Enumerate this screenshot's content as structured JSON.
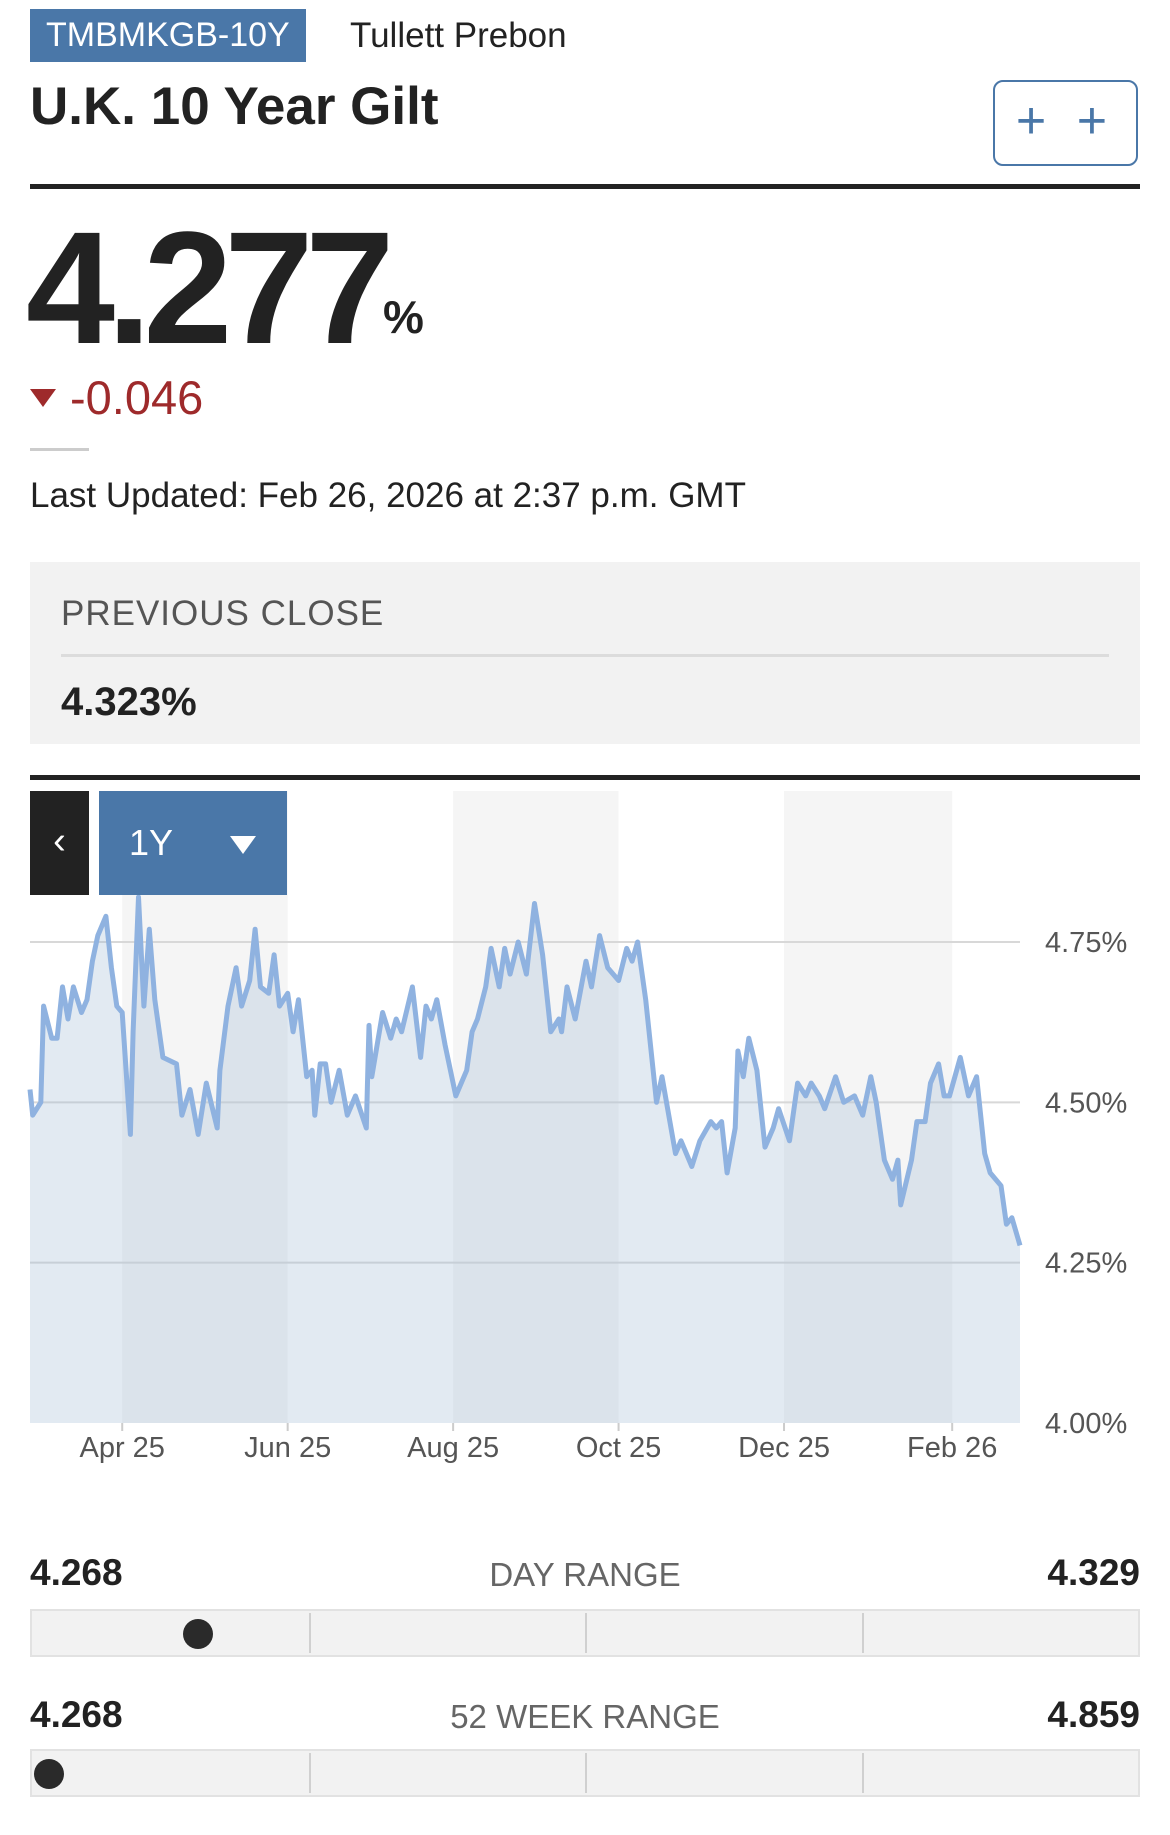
{
  "header": {
    "ticker": "TMBMKGB-10Y",
    "source": "Tullett Prebon",
    "title": "U.K. 10 Year Gilt",
    "add_button_label": "+ +"
  },
  "quote": {
    "price": "4.277",
    "unit": "%",
    "change": "-0.046",
    "direction": "down",
    "last_updated": "Last Updated: Feb 26, 2026 at 2:37 p.m. GMT"
  },
  "previous_close": {
    "label": "PREVIOUS CLOSE",
    "value": "4.323%"
  },
  "chart_controls": {
    "back_label": "‹",
    "range_label": "1Y"
  },
  "colors": {
    "accent": "#4a77a8",
    "negative": "#9e2a2b",
    "line": "#8fb2e0"
  },
  "chart_data": {
    "type": "area",
    "y_ticks": [
      "4.75%",
      "4.50%",
      "4.25%",
      "4.00%"
    ],
    "y_tick_values": [
      4.75,
      4.5,
      4.25,
      4.0
    ],
    "ylim": [
      4.0,
      4.75
    ],
    "x_ticks": [
      "Apr 25",
      "Jun 25",
      "Aug 25",
      "Oct 25",
      "Dec 25",
      "Feb 26"
    ],
    "x_tick_dates": [
      "2025-04-01",
      "2025-06-01",
      "2025-08-01",
      "2025-10-01",
      "2025-12-01",
      "2026-02-01"
    ],
    "xlim": [
      "2025-02-26",
      "2026-02-26"
    ],
    "grid": true,
    "points": [
      [
        "2025-02-26",
        4.52
      ],
      [
        "2025-02-27",
        4.48
      ],
      [
        "2025-03-02",
        4.5
      ],
      [
        "2025-03-03",
        4.65
      ],
      [
        "2025-03-06",
        4.6
      ],
      [
        "2025-03-08",
        4.6
      ],
      [
        "2025-03-10",
        4.68
      ],
      [
        "2025-03-12",
        4.63
      ],
      [
        "2025-03-14",
        4.68
      ],
      [
        "2025-03-17",
        4.64
      ],
      [
        "2025-03-19",
        4.66
      ],
      [
        "2025-03-21",
        4.72
      ],
      [
        "2025-03-23",
        4.76
      ],
      [
        "2025-03-26",
        4.79
      ],
      [
        "2025-03-28",
        4.71
      ],
      [
        "2025-03-30",
        4.65
      ],
      [
        "2025-04-01",
        4.64
      ],
      [
        "2025-04-04",
        4.45
      ],
      [
        "2025-04-05",
        4.61
      ],
      [
        "2025-04-07",
        4.82
      ],
      [
        "2025-04-09",
        4.65
      ],
      [
        "2025-04-11",
        4.77
      ],
      [
        "2025-04-13",
        4.66
      ],
      [
        "2025-04-16",
        4.57
      ],
      [
        "2025-04-21",
        4.56
      ],
      [
        "2025-04-23",
        4.48
      ],
      [
        "2025-04-26",
        4.52
      ],
      [
        "2025-04-29",
        4.45
      ],
      [
        "2025-05-02",
        4.53
      ],
      [
        "2025-05-06",
        4.46
      ],
      [
        "2025-05-07",
        4.55
      ],
      [
        "2025-05-10",
        4.65
      ],
      [
        "2025-05-13",
        4.71
      ],
      [
        "2025-05-15",
        4.65
      ],
      [
        "2025-05-18",
        4.69
      ],
      [
        "2025-05-20",
        4.77
      ],
      [
        "2025-05-22",
        4.68
      ],
      [
        "2025-05-25",
        4.67
      ],
      [
        "2025-05-27",
        4.73
      ],
      [
        "2025-05-29",
        4.65
      ],
      [
        "2025-06-01",
        4.67
      ],
      [
        "2025-06-03",
        4.61
      ],
      [
        "2025-06-05",
        4.66
      ],
      [
        "2025-06-08",
        4.54
      ],
      [
        "2025-06-10",
        4.55
      ],
      [
        "2025-06-11",
        4.48
      ],
      [
        "2025-06-13",
        4.56
      ],
      [
        "2025-06-15",
        4.56
      ],
      [
        "2025-06-17",
        4.5
      ],
      [
        "2025-06-20",
        4.55
      ],
      [
        "2025-06-23",
        4.48
      ],
      [
        "2025-06-26",
        4.51
      ],
      [
        "2025-06-30",
        4.46
      ],
      [
        "2025-07-01",
        4.62
      ],
      [
        "2025-07-02",
        4.54
      ],
      [
        "2025-07-06",
        4.64
      ],
      [
        "2025-07-09",
        4.6
      ],
      [
        "2025-07-11",
        4.63
      ],
      [
        "2025-07-13",
        4.61
      ],
      [
        "2025-07-17",
        4.68
      ],
      [
        "2025-07-20",
        4.57
      ],
      [
        "2025-07-22",
        4.65
      ],
      [
        "2025-07-24",
        4.63
      ],
      [
        "2025-07-26",
        4.66
      ],
      [
        "2025-07-29",
        4.59
      ],
      [
        "2025-08-02",
        4.51
      ],
      [
        "2025-08-06",
        4.55
      ],
      [
        "2025-08-08",
        4.61
      ],
      [
        "2025-08-10",
        4.63
      ],
      [
        "2025-08-13",
        4.68
      ],
      [
        "2025-08-15",
        4.74
      ],
      [
        "2025-08-18",
        4.68
      ],
      [
        "2025-08-20",
        4.74
      ],
      [
        "2025-08-22",
        4.7
      ],
      [
        "2025-08-25",
        4.75
      ],
      [
        "2025-08-28",
        4.7
      ],
      [
        "2025-08-31",
        4.81
      ],
      [
        "2025-09-03",
        4.73
      ],
      [
        "2025-09-06",
        4.61
      ],
      [
        "2025-09-09",
        4.63
      ],
      [
        "2025-09-10",
        4.61
      ],
      [
        "2025-09-12",
        4.68
      ],
      [
        "2025-09-15",
        4.63
      ],
      [
        "2025-09-19",
        4.72
      ],
      [
        "2025-09-21",
        4.68
      ],
      [
        "2025-09-24",
        4.76
      ],
      [
        "2025-09-27",
        4.71
      ],
      [
        "2025-10-01",
        4.69
      ],
      [
        "2025-10-04",
        4.74
      ],
      [
        "2025-10-06",
        4.72
      ],
      [
        "2025-10-08",
        4.75
      ],
      [
        "2025-10-11",
        4.66
      ],
      [
        "2025-10-15",
        4.5
      ],
      [
        "2025-10-17",
        4.54
      ],
      [
        "2025-10-22",
        4.42
      ],
      [
        "2025-10-24",
        4.44
      ],
      [
        "2025-10-28",
        4.4
      ],
      [
        "2025-10-31",
        4.44
      ],
      [
        "2025-11-04",
        4.47
      ],
      [
        "2025-11-06",
        4.46
      ],
      [
        "2025-11-08",
        4.47
      ],
      [
        "2025-11-10",
        4.39
      ],
      [
        "2025-11-13",
        4.46
      ],
      [
        "2025-11-14",
        4.58
      ],
      [
        "2025-11-16",
        4.54
      ],
      [
        "2025-11-18",
        4.6
      ],
      [
        "2025-11-21",
        4.55
      ],
      [
        "2025-11-24",
        4.43
      ],
      [
        "2025-11-27",
        4.46
      ],
      [
        "2025-11-29",
        4.49
      ],
      [
        "2025-12-03",
        4.44
      ],
      [
        "2025-12-06",
        4.53
      ],
      [
        "2025-12-09",
        4.51
      ],
      [
        "2025-12-11",
        4.53
      ],
      [
        "2025-12-14",
        4.51
      ],
      [
        "2025-12-16",
        4.49
      ],
      [
        "2025-12-20",
        4.54
      ],
      [
        "2025-12-23",
        4.5
      ],
      [
        "2025-12-27",
        4.51
      ],
      [
        "2025-12-30",
        4.48
      ],
      [
        "2026-01-02",
        4.54
      ],
      [
        "2026-01-04",
        4.5
      ],
      [
        "2026-01-07",
        4.41
      ],
      [
        "2026-01-10",
        4.38
      ],
      [
        "2026-01-12",
        4.41
      ],
      [
        "2026-01-13",
        4.34
      ],
      [
        "2026-01-17",
        4.41
      ],
      [
        "2026-01-19",
        4.47
      ],
      [
        "2026-01-22",
        4.47
      ],
      [
        "2026-01-24",
        4.53
      ],
      [
        "2026-01-27",
        4.56
      ],
      [
        "2026-01-29",
        4.51
      ],
      [
        "2026-01-31",
        4.51
      ],
      [
        "2026-02-04",
        4.57
      ],
      [
        "2026-02-07",
        4.51
      ],
      [
        "2026-02-10",
        4.54
      ],
      [
        "2026-02-13",
        4.42
      ],
      [
        "2026-02-15",
        4.39
      ],
      [
        "2026-02-19",
        4.37
      ],
      [
        "2026-02-21",
        4.31
      ],
      [
        "2026-02-23",
        4.32
      ],
      [
        "2026-02-26",
        4.277
      ]
    ]
  },
  "ranges": [
    {
      "title": "DAY RANGE",
      "low": "4.268",
      "high": "4.329",
      "position": 0.15
    },
    {
      "title": "52 WEEK RANGE",
      "low": "4.268",
      "high": "4.859",
      "position": 0.015
    }
  ]
}
